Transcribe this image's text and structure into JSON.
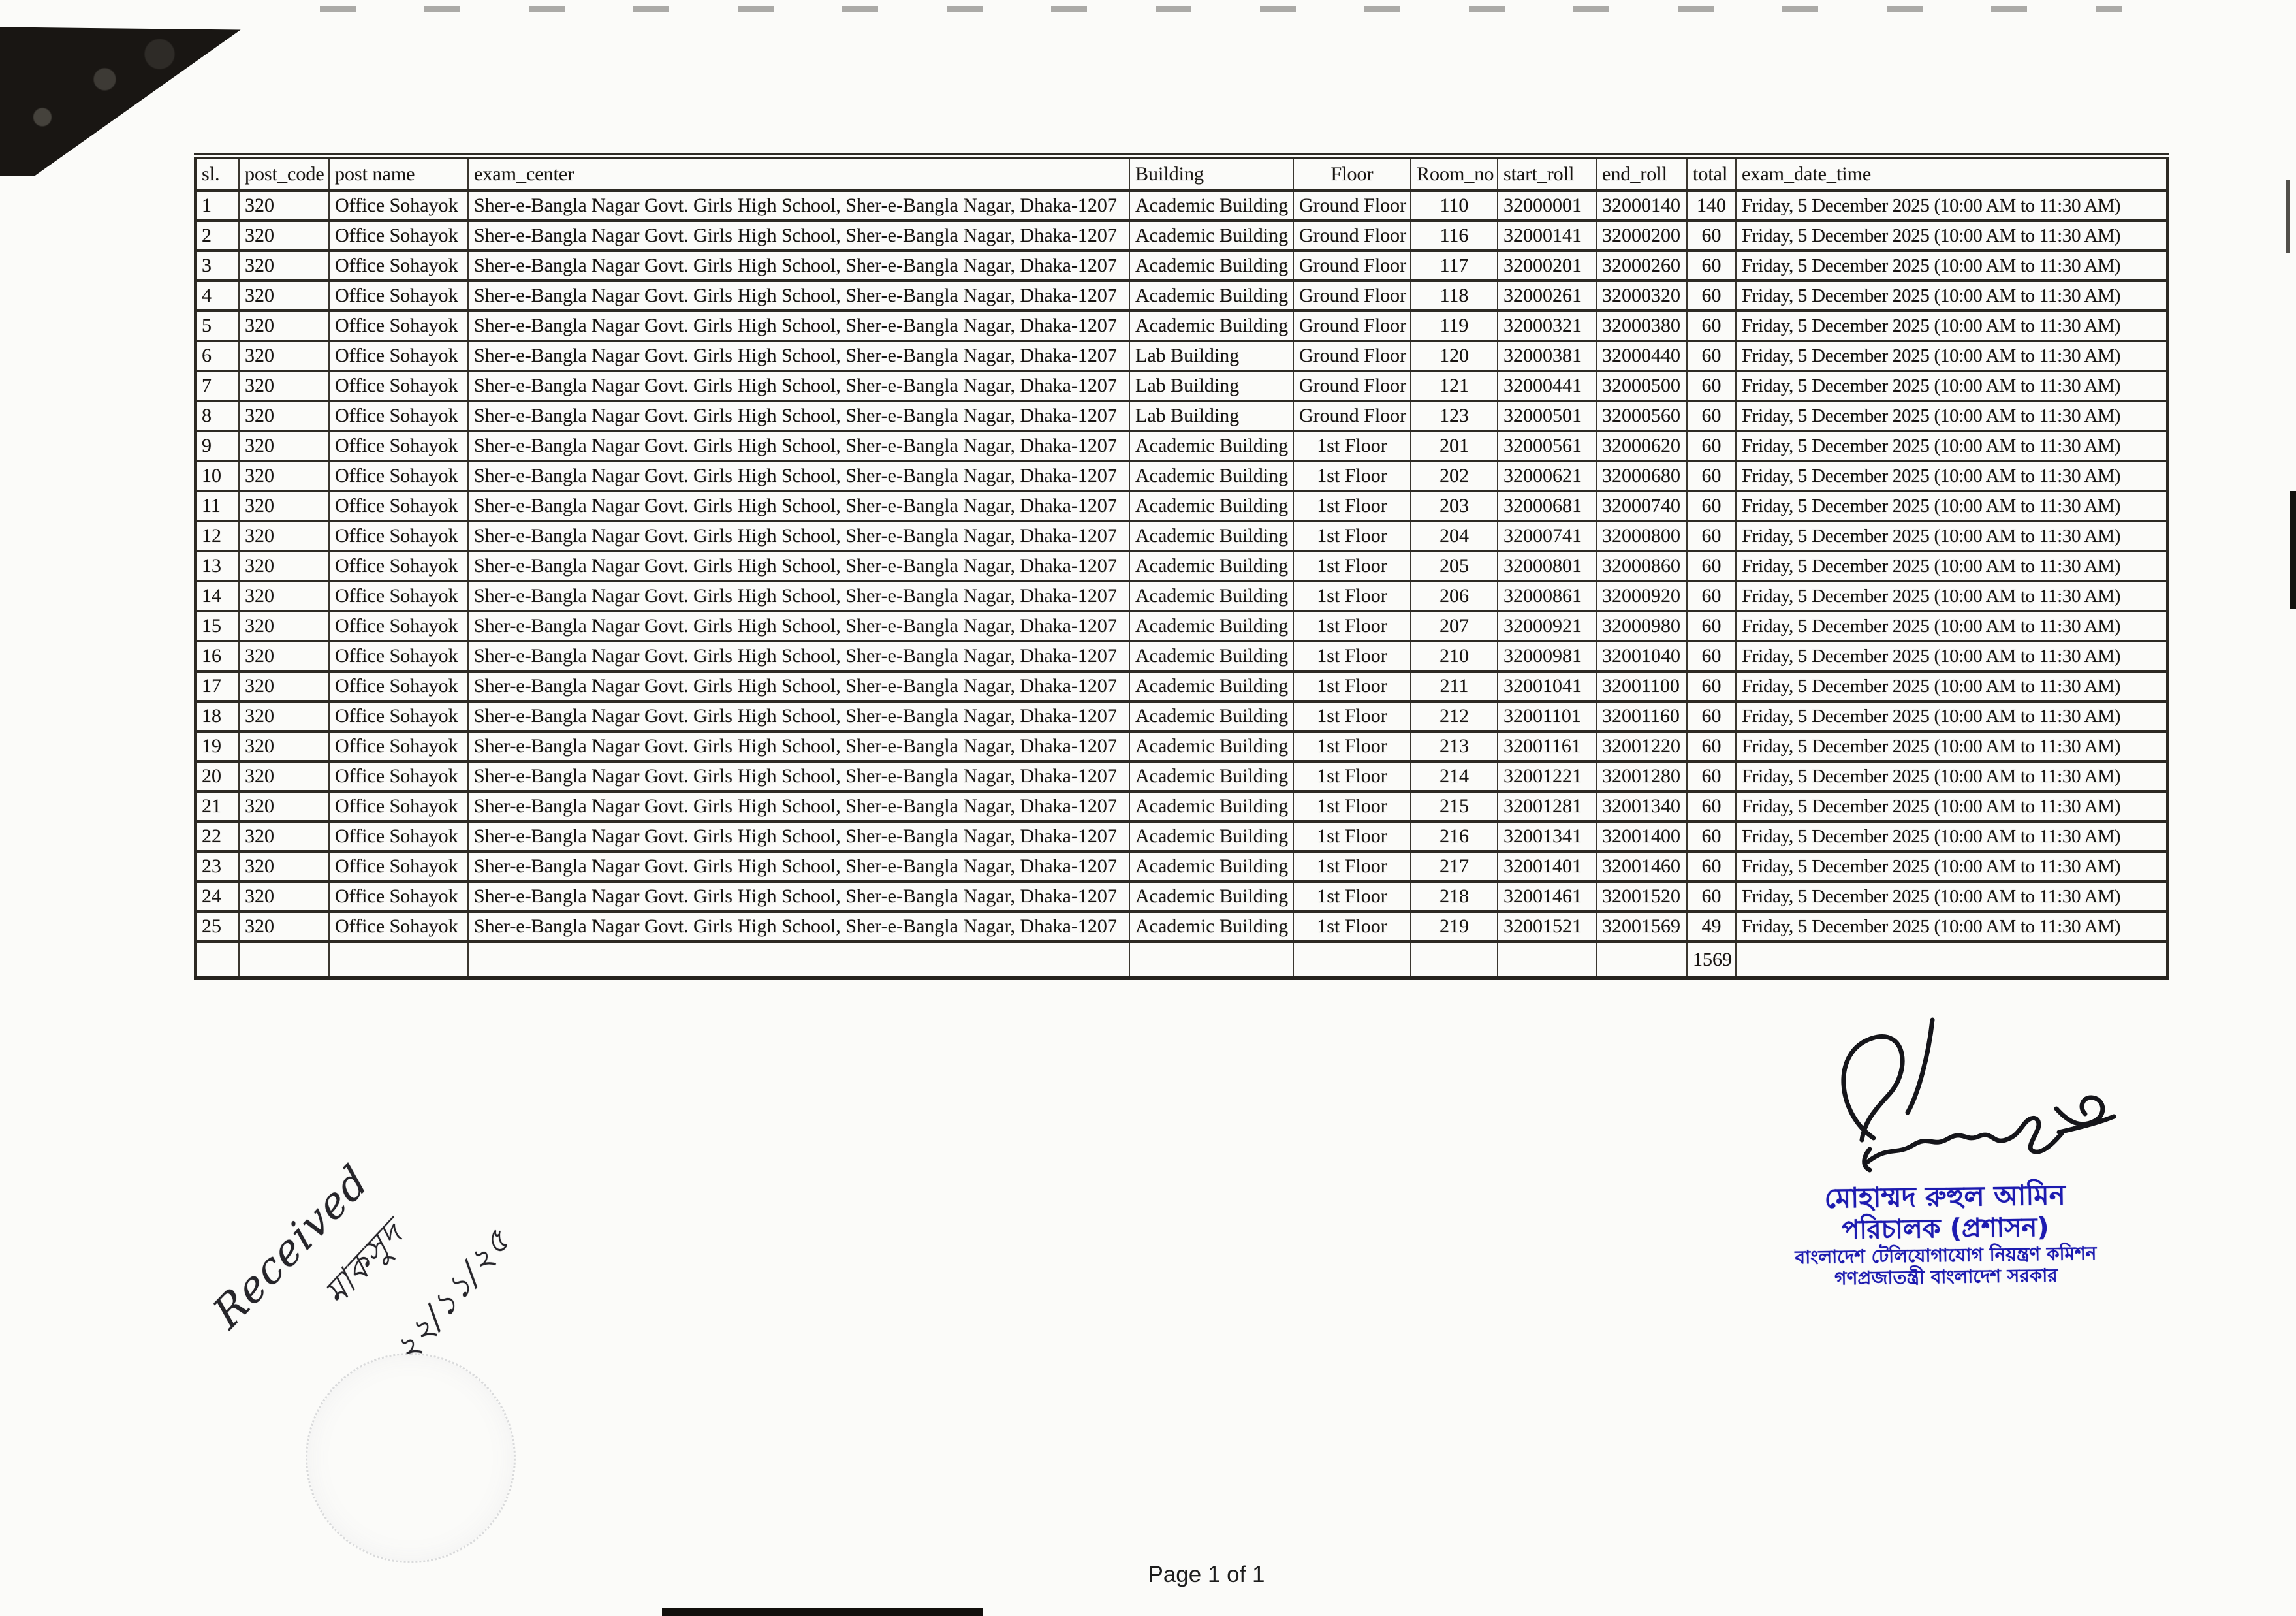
{
  "page_label": "Page 1 of 1",
  "table": {
    "headers": [
      "sl.",
      "post_code",
      "post name",
      "exam_center",
      "Building",
      "Floor",
      "Room_no",
      "start_roll",
      "end_roll",
      "total",
      "exam_date_time"
    ],
    "rows": [
      [
        "1",
        "320",
        "Office Sohayok",
        "Sher-e-Bangla Nagar Govt. Girls High School, Sher-e-Bangla Nagar, Dhaka-1207",
        "Academic Building",
        "Ground Floor",
        "110",
        "32000001",
        "32000140",
        "140",
        "Friday, 5 December 2025 (10:00 AM to 11:30 AM)"
      ],
      [
        "2",
        "320",
        "Office Sohayok",
        "Sher-e-Bangla Nagar Govt. Girls High School, Sher-e-Bangla Nagar, Dhaka-1207",
        "Academic Building",
        "Ground Floor",
        "116",
        "32000141",
        "32000200",
        "60",
        "Friday, 5 December 2025 (10:00 AM to 11:30 AM)"
      ],
      [
        "3",
        "320",
        "Office Sohayok",
        "Sher-e-Bangla Nagar Govt. Girls High School, Sher-e-Bangla Nagar, Dhaka-1207",
        "Academic Building",
        "Ground Floor",
        "117",
        "32000201",
        "32000260",
        "60",
        "Friday, 5 December 2025 (10:00 AM to 11:30 AM)"
      ],
      [
        "4",
        "320",
        "Office Sohayok",
        "Sher-e-Bangla Nagar Govt. Girls High School, Sher-e-Bangla Nagar, Dhaka-1207",
        "Academic Building",
        "Ground Floor",
        "118",
        "32000261",
        "32000320",
        "60",
        "Friday, 5 December 2025 (10:00 AM to 11:30 AM)"
      ],
      [
        "5",
        "320",
        "Office Sohayok",
        "Sher-e-Bangla Nagar Govt. Girls High School, Sher-e-Bangla Nagar, Dhaka-1207",
        "Academic Building",
        "Ground Floor",
        "119",
        "32000321",
        "32000380",
        "60",
        "Friday, 5 December 2025 (10:00 AM to 11:30 AM)"
      ],
      [
        "6",
        "320",
        "Office Sohayok",
        "Sher-e-Bangla Nagar Govt. Girls High School, Sher-e-Bangla Nagar, Dhaka-1207",
        "Lab Building",
        "Ground Floor",
        "120",
        "32000381",
        "32000440",
        "60",
        "Friday, 5 December 2025 (10:00 AM to 11:30 AM)"
      ],
      [
        "7",
        "320",
        "Office Sohayok",
        "Sher-e-Bangla Nagar Govt. Girls High School, Sher-e-Bangla Nagar, Dhaka-1207",
        "Lab Building",
        "Ground Floor",
        "121",
        "32000441",
        "32000500",
        "60",
        "Friday, 5 December 2025 (10:00 AM to 11:30 AM)"
      ],
      [
        "8",
        "320",
        "Office Sohayok",
        "Sher-e-Bangla Nagar Govt. Girls High School, Sher-e-Bangla Nagar, Dhaka-1207",
        "Lab Building",
        "Ground Floor",
        "123",
        "32000501",
        "32000560",
        "60",
        "Friday, 5 December 2025 (10:00 AM to 11:30 AM)"
      ],
      [
        "9",
        "320",
        "Office Sohayok",
        "Sher-e-Bangla Nagar Govt. Girls High School, Sher-e-Bangla Nagar, Dhaka-1207",
        "Academic Building",
        "1st Floor",
        "201",
        "32000561",
        "32000620",
        "60",
        "Friday, 5 December 2025 (10:00 AM to 11:30 AM)"
      ],
      [
        "10",
        "320",
        "Office Sohayok",
        "Sher-e-Bangla Nagar Govt. Girls High School, Sher-e-Bangla Nagar, Dhaka-1207",
        "Academic Building",
        "1st Floor",
        "202",
        "32000621",
        "32000680",
        "60",
        "Friday, 5 December 2025 (10:00 AM to 11:30 AM)"
      ],
      [
        "11",
        "320",
        "Office Sohayok",
        "Sher-e-Bangla Nagar Govt. Girls High School, Sher-e-Bangla Nagar, Dhaka-1207",
        "Academic Building",
        "1st Floor",
        "203",
        "32000681",
        "32000740",
        "60",
        "Friday, 5 December 2025 (10:00 AM to 11:30 AM)"
      ],
      [
        "12",
        "320",
        "Office Sohayok",
        "Sher-e-Bangla Nagar Govt. Girls High School, Sher-e-Bangla Nagar, Dhaka-1207",
        "Academic Building",
        "1st Floor",
        "204",
        "32000741",
        "32000800",
        "60",
        "Friday, 5 December 2025 (10:00 AM to 11:30 AM)"
      ],
      [
        "13",
        "320",
        "Office Sohayok",
        "Sher-e-Bangla Nagar Govt. Girls High School, Sher-e-Bangla Nagar, Dhaka-1207",
        "Academic Building",
        "1st Floor",
        "205",
        "32000801",
        "32000860",
        "60",
        "Friday, 5 December 2025 (10:00 AM to 11:30 AM)"
      ],
      [
        "14",
        "320",
        "Office Sohayok",
        "Sher-e-Bangla Nagar Govt. Girls High School, Sher-e-Bangla Nagar, Dhaka-1207",
        "Academic Building",
        "1st Floor",
        "206",
        "32000861",
        "32000920",
        "60",
        "Friday, 5 December 2025 (10:00 AM to 11:30 AM)"
      ],
      [
        "15",
        "320",
        "Office Sohayok",
        "Sher-e-Bangla Nagar Govt. Girls High School, Sher-e-Bangla Nagar, Dhaka-1207",
        "Academic Building",
        "1st Floor",
        "207",
        "32000921",
        "32000980",
        "60",
        "Friday, 5 December 2025 (10:00 AM to 11:30 AM)"
      ],
      [
        "16",
        "320",
        "Office Sohayok",
        "Sher-e-Bangla Nagar Govt. Girls High School, Sher-e-Bangla Nagar, Dhaka-1207",
        "Academic Building",
        "1st Floor",
        "210",
        "32000981",
        "32001040",
        "60",
        "Friday, 5 December 2025 (10:00 AM to 11:30 AM)"
      ],
      [
        "17",
        "320",
        "Office Sohayok",
        "Sher-e-Bangla Nagar Govt. Girls High School, Sher-e-Bangla Nagar, Dhaka-1207",
        "Academic Building",
        "1st Floor",
        "211",
        "32001041",
        "32001100",
        "60",
        "Friday, 5 December 2025 (10:00 AM to 11:30 AM)"
      ],
      [
        "18",
        "320",
        "Office Sohayok",
        "Sher-e-Bangla Nagar Govt. Girls High School, Sher-e-Bangla Nagar, Dhaka-1207",
        "Academic Building",
        "1st Floor",
        "212",
        "32001101",
        "32001160",
        "60",
        "Friday, 5 December 2025 (10:00 AM to 11:30 AM)"
      ],
      [
        "19",
        "320",
        "Office Sohayok",
        "Sher-e-Bangla Nagar Govt. Girls High School, Sher-e-Bangla Nagar, Dhaka-1207",
        "Academic Building",
        "1st Floor",
        "213",
        "32001161",
        "32001220",
        "60",
        "Friday, 5 December 2025 (10:00 AM to 11:30 AM)"
      ],
      [
        "20",
        "320",
        "Office Sohayok",
        "Sher-e-Bangla Nagar Govt. Girls High School, Sher-e-Bangla Nagar, Dhaka-1207",
        "Academic Building",
        "1st Floor",
        "214",
        "32001221",
        "32001280",
        "60",
        "Friday, 5 December 2025 (10:00 AM to 11:30 AM)"
      ],
      [
        "21",
        "320",
        "Office Sohayok",
        "Sher-e-Bangla Nagar Govt. Girls High School, Sher-e-Bangla Nagar, Dhaka-1207",
        "Academic Building",
        "1st Floor",
        "215",
        "32001281",
        "32001340",
        "60",
        "Friday, 5 December 2025 (10:00 AM to 11:30 AM)"
      ],
      [
        "22",
        "320",
        "Office Sohayok",
        "Sher-e-Bangla Nagar Govt. Girls High School, Sher-e-Bangla Nagar, Dhaka-1207",
        "Academic Building",
        "1st Floor",
        "216",
        "32001341",
        "32001400",
        "60",
        "Friday, 5 December 2025 (10:00 AM to 11:30 AM)"
      ],
      [
        "23",
        "320",
        "Office Sohayok",
        "Sher-e-Bangla Nagar Govt. Girls High School, Sher-e-Bangla Nagar, Dhaka-1207",
        "Academic Building",
        "1st Floor",
        "217",
        "32001401",
        "32001460",
        "60",
        "Friday, 5 December 2025 (10:00 AM to 11:30 AM)"
      ],
      [
        "24",
        "320",
        "Office Sohayok",
        "Sher-e-Bangla Nagar Govt. Girls High School, Sher-e-Bangla Nagar, Dhaka-1207",
        "Academic Building",
        "1st Floor",
        "218",
        "32001461",
        "32001520",
        "60",
        "Friday, 5 December 2025 (10:00 AM to 11:30 AM)"
      ],
      [
        "25",
        "320",
        "Office Sohayok",
        "Sher-e-Bangla Nagar Govt. Girls High School, Sher-e-Bangla Nagar, Dhaka-1207",
        "Academic Building",
        "1st Floor",
        "219",
        "32001521",
        "32001569",
        "49",
        "Friday, 5 December 2025 (10:00 AM to 11:30 AM)"
      ]
    ],
    "grand_total": "1569"
  },
  "received_note": {
    "word": "Received",
    "signature": "মাকসুদ",
    "date": "২২/১১/২৫"
  },
  "stamp": {
    "name": "মোহাম্মদ রুহুল আমিন",
    "title": "পরিচালক (প্রশাসন)",
    "org": "বাংলাদেশ টেলিযোগাযোগ নিয়ন্ত্রণ কমিশন",
    "govt": "গণপ্রজাতন্ত্রী বাংলাদেশ সরকার",
    "ink_color": "#1d1bb0"
  },
  "colors": {
    "paper": "#fbfbf9",
    "table_border": "#2d2a24",
    "text_ink": "#181512",
    "artifact_black": "#191613"
  }
}
